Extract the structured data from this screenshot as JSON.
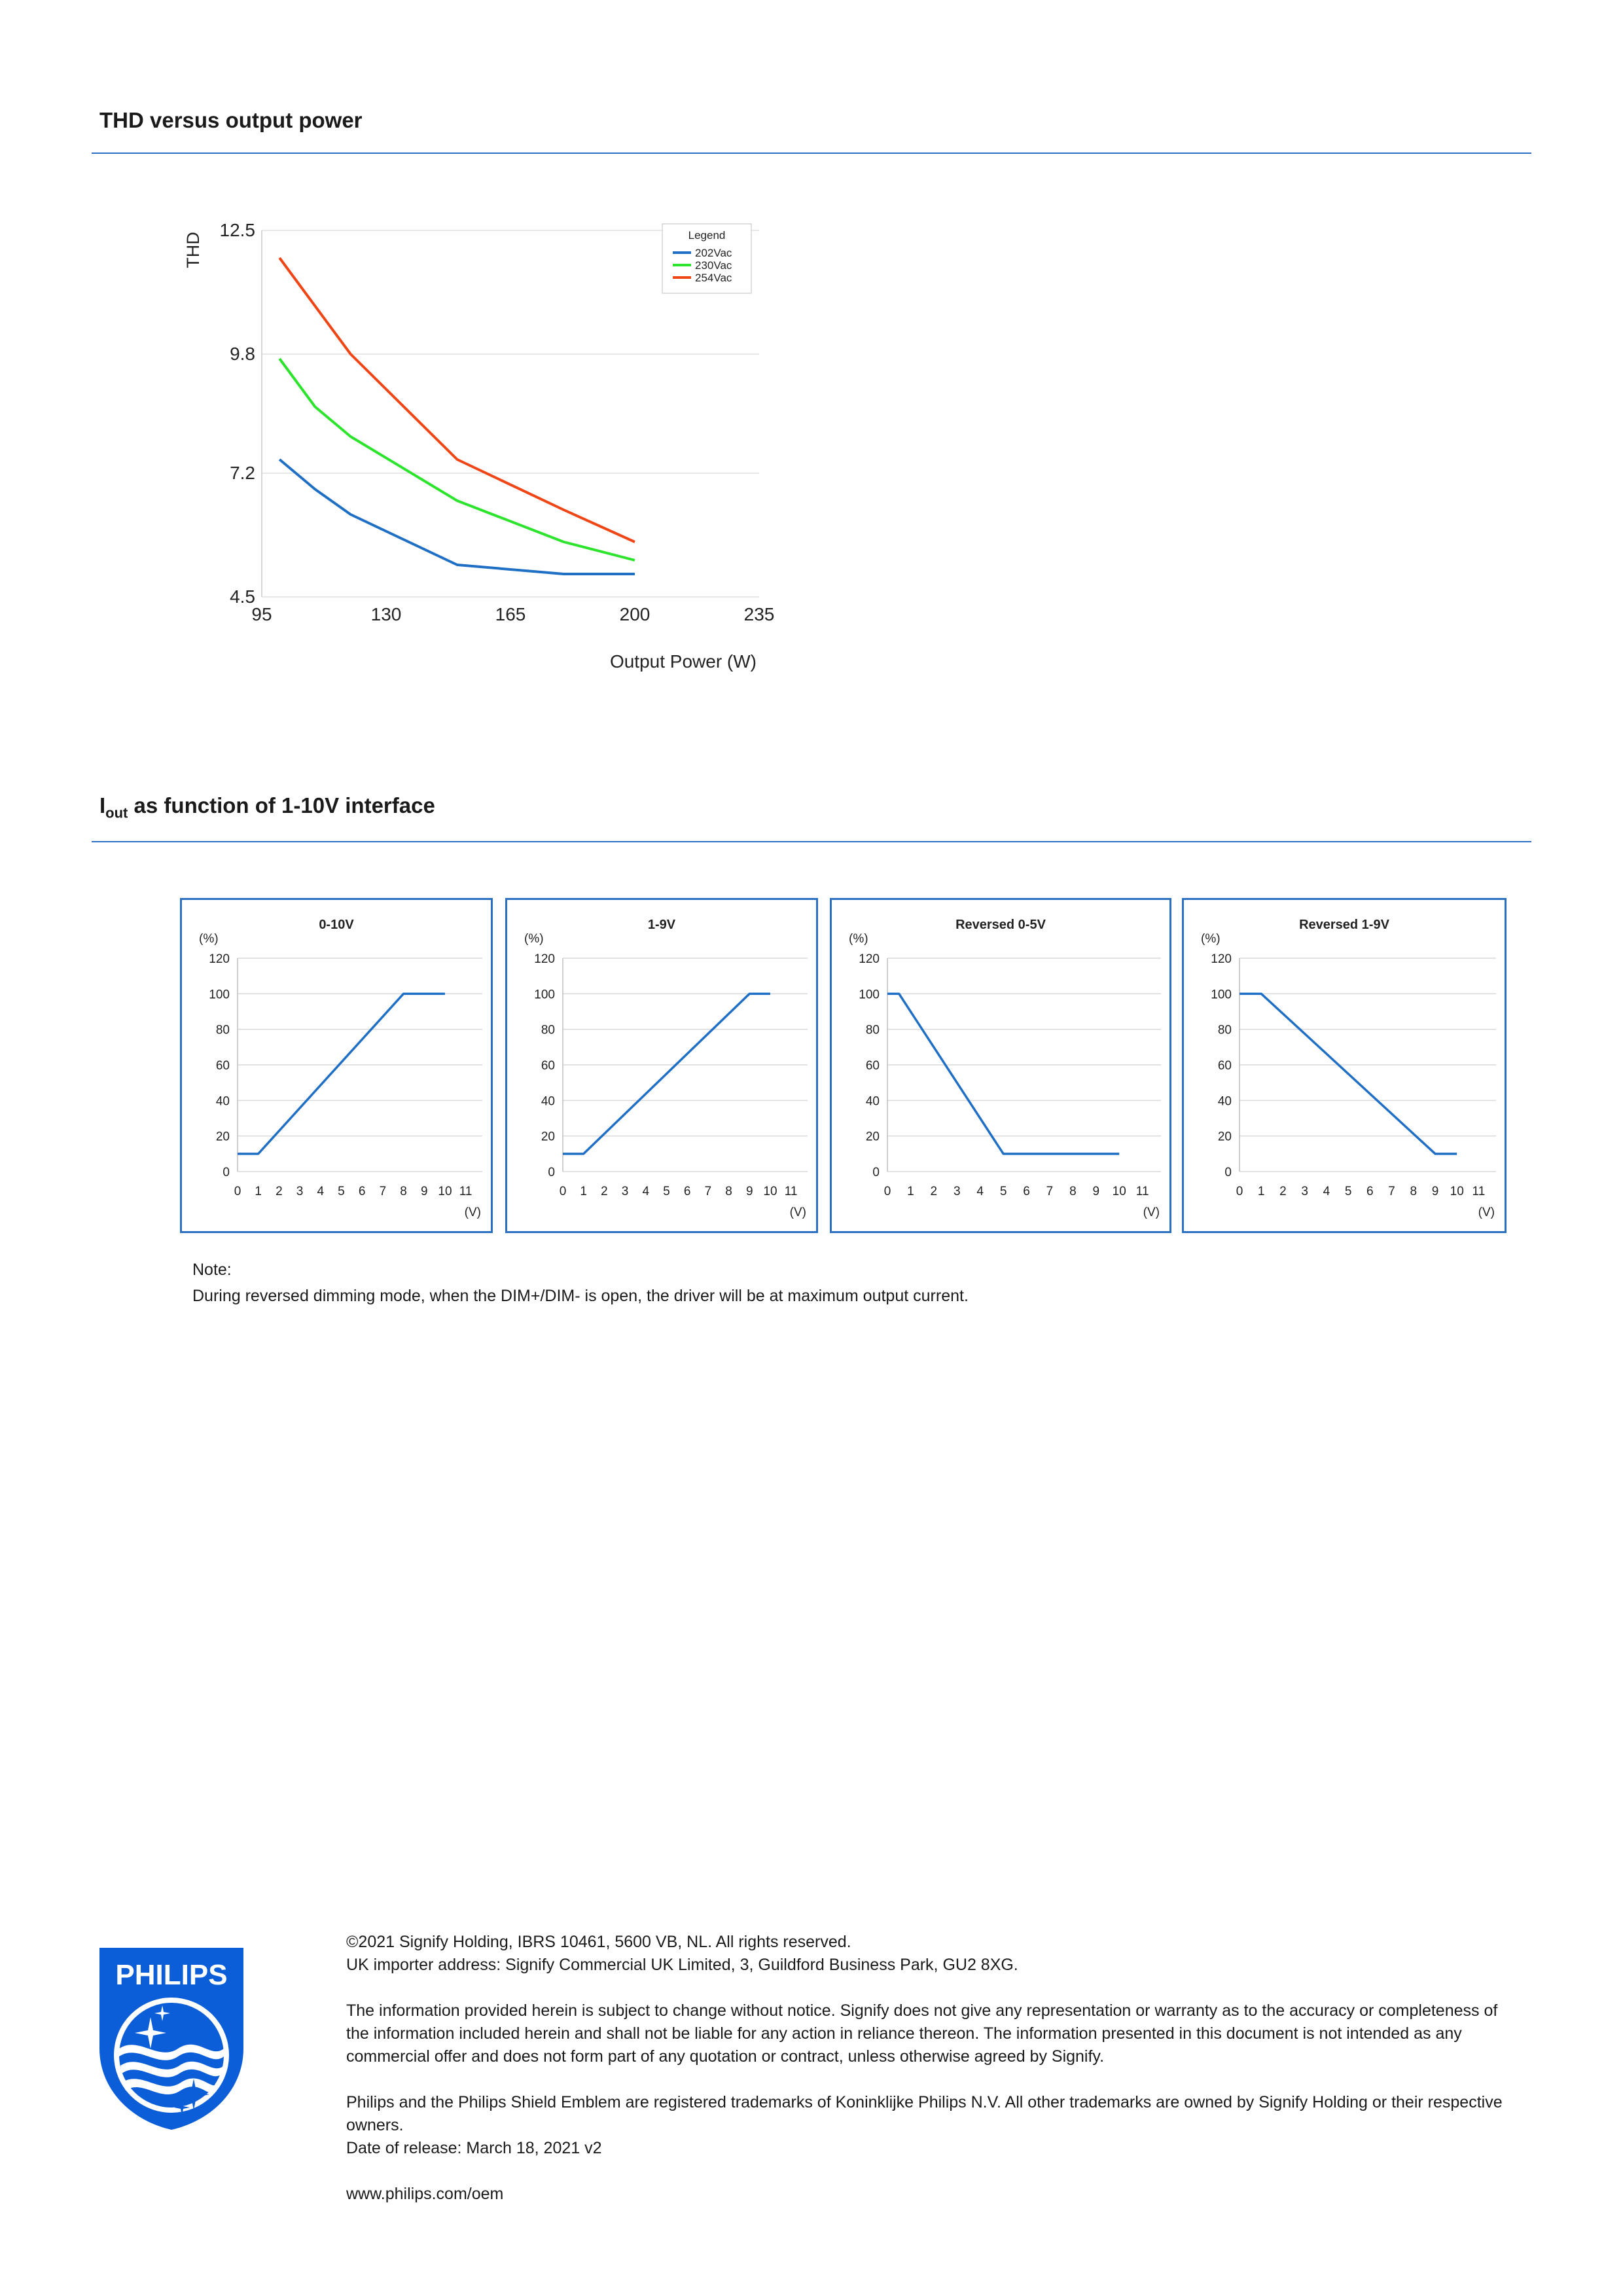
{
  "sections": {
    "thd_title": "THD versus output power",
    "iout_title_main": "I",
    "iout_title_sub": "out",
    "iout_title_rest": " as function of 1-10V interface"
  },
  "chart_data": [
    {
      "type": "line",
      "title": "",
      "xlabel": "Output Power (W)",
      "ylabel": "THD",
      "xlim": [
        95,
        235
      ],
      "ylim": [
        4.5,
        12.5
      ],
      "xticks": [
        "95",
        "130",
        "165",
        "200",
        "235"
      ],
      "yticks": [
        "4.5",
        "7.2",
        "9.8",
        "12.5"
      ],
      "grid": true,
      "legend": {
        "title": "Legend",
        "position": "top-right"
      },
      "series": [
        {
          "name": "202Vac",
          "color": "#1f6fc5",
          "x": [
            100,
            110,
            120,
            150,
            180,
            200
          ],
          "y": [
            7.5,
            6.85,
            6.3,
            5.2,
            5.0,
            5.0
          ]
        },
        {
          "name": "230Vac",
          "color": "#2de42d",
          "x": [
            100,
            110,
            120,
            150,
            180,
            200
          ],
          "y": [
            9.7,
            8.65,
            8.0,
            6.6,
            5.7,
            5.3
          ]
        },
        {
          "name": "254Vac",
          "color": "#f04515",
          "x": [
            100,
            120,
            150,
            180,
            200
          ],
          "y": [
            11.9,
            9.8,
            7.5,
            6.4,
            5.7
          ]
        }
      ]
    },
    {
      "type": "line",
      "title": "0-10V",
      "ylabel": "(%)",
      "xlabel": "(V)",
      "xlim": [
        0,
        11
      ],
      "ylim": [
        0,
        120
      ],
      "xticks": [
        "0",
        "1",
        "2",
        "3",
        "4",
        "5",
        "6",
        "7",
        "8",
        "9",
        "10",
        "11"
      ],
      "yticks": [
        "0",
        "20",
        "40",
        "60",
        "80",
        "100",
        "120"
      ],
      "series": [
        {
          "color": "#1f6fc5",
          "x": [
            0,
            1,
            8,
            10
          ],
          "y": [
            10,
            10,
            100,
            100
          ]
        }
      ]
    },
    {
      "type": "line",
      "title": "1-9V",
      "ylabel": "(%)",
      "xlabel": "(V)",
      "xlim": [
        0,
        11
      ],
      "ylim": [
        0,
        120
      ],
      "xticks": [
        "0",
        "1",
        "2",
        "3",
        "4",
        "5",
        "6",
        "7",
        "8",
        "9",
        "10",
        "11"
      ],
      "yticks": [
        "0",
        "20",
        "40",
        "60",
        "80",
        "100",
        "120"
      ],
      "series": [
        {
          "color": "#1f6fc5",
          "x": [
            0,
            1,
            9,
            10
          ],
          "y": [
            10,
            10,
            100,
            100
          ]
        }
      ]
    },
    {
      "type": "line",
      "title": "Reversed 0-5V",
      "ylabel": "(%)",
      "xlabel": "(V)",
      "xlim": [
        0,
        11
      ],
      "ylim": [
        0,
        120
      ],
      "xticks": [
        "0",
        "1",
        "2",
        "3",
        "4",
        "5",
        "6",
        "7",
        "8",
        "9",
        "10",
        "11"
      ],
      "yticks": [
        "0",
        "20",
        "40",
        "60",
        "80",
        "100",
        "120"
      ],
      "series": [
        {
          "color": "#1f6fc5",
          "x": [
            0,
            0.5,
            5,
            10
          ],
          "y": [
            100,
            100,
            10,
            10
          ]
        }
      ]
    },
    {
      "type": "line",
      "title": "Reversed 1-9V",
      "ylabel": "(%)",
      "xlabel": "(V)",
      "xlim": [
        0,
        11
      ],
      "ylim": [
        0,
        120
      ],
      "xticks": [
        "0",
        "1",
        "2",
        "3",
        "4",
        "5",
        "6",
        "7",
        "8",
        "9",
        "10",
        "11"
      ],
      "yticks": [
        "0",
        "20",
        "40",
        "60",
        "80",
        "100",
        "120"
      ],
      "series": [
        {
          "color": "#1f6fc5",
          "x": [
            0,
            1,
            9,
            10
          ],
          "y": [
            100,
            100,
            10,
            10
          ]
        }
      ]
    }
  ],
  "note": {
    "heading": "Note:",
    "text": "During reversed dimming mode, when the DIM+/DIM- is open, the driver will be at maximum output current."
  },
  "footer": {
    "copyright": "©2021 Signify Holding, IBRS 10461, 5600 VB, NL. All rights reserved.",
    "importer": "UK importer address: Signify Commercial UK Limited, 3, Guildford Business Park, GU2 8XG.",
    "disclaimer": "The information provided herein is subject to change without notice. Signify does not give any representation or warranty as to the accuracy or completeness of the information included herein and shall not be liable for any action in reliance thereon. The information presented in this document is not intended as any commercial offer and does not form part of any quotation or contract, unless otherwise agreed by Signify.",
    "trademarks": "Philips and the Philips Shield Emblem are registered trademarks of Koninklijke Philips N.V. All other trademarks are owned by Signify Holding or their respective owners.",
    "release": "Date of release: March 18, 2021 v2",
    "website": "www.philips.com/oem"
  },
  "logo": {
    "text": "PHILIPS",
    "color": "#0b5ed7",
    "icon": "philips-shield-icon"
  }
}
